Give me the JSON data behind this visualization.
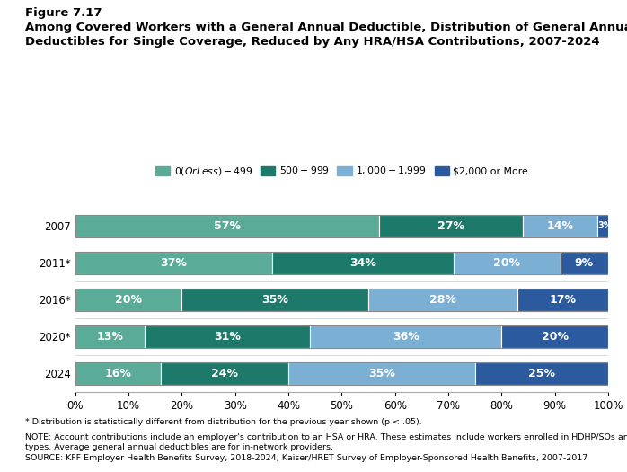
{
  "title_line1": "Figure 7.17",
  "title_line2": "Among Covered Workers with a General Annual Deductible, Distribution of General Annual\nDeductibles for Single Coverage, Reduced by Any HRA/HSA Contributions, 2007-2024",
  "years": [
    "2007",
    "2011*",
    "2016*",
    "2020*",
    "2024"
  ],
  "categories": [
    "$0 (Or Less) - $499",
    "$500 - $999",
    "$1,000 - $1,999",
    "$2,000 or More"
  ],
  "colors": [
    "#5aab97",
    "#1d7a6a",
    "#7bafd4",
    "#2b5b9e"
  ],
  "data": [
    [
      57,
      27,
      14,
      3
    ],
    [
      37,
      34,
      20,
      9
    ],
    [
      20,
      35,
      28,
      17
    ],
    [
      13,
      31,
      36,
      20
    ],
    [
      16,
      24,
      35,
      25
    ]
  ],
  "footnote1": "* Distribution is statistically different from distribution for the previous year shown (p < .05).",
  "footnote2": "NOTE: Account contributions include an employer's contribution to an HSA or HRA. These estimates include workers enrolled in HDHP/SOs and other plan\ntypes. Average general annual deductibles are for in-network providers.",
  "footnote3": "SOURCE: KFF Employer Health Benefits Survey, 2018-2024; Kaiser/HRET Survey of Employer-Sponsored Health Benefits, 2007-2017",
  "background_color": "#ffffff",
  "chart_bg_color": "#f0f0f0"
}
